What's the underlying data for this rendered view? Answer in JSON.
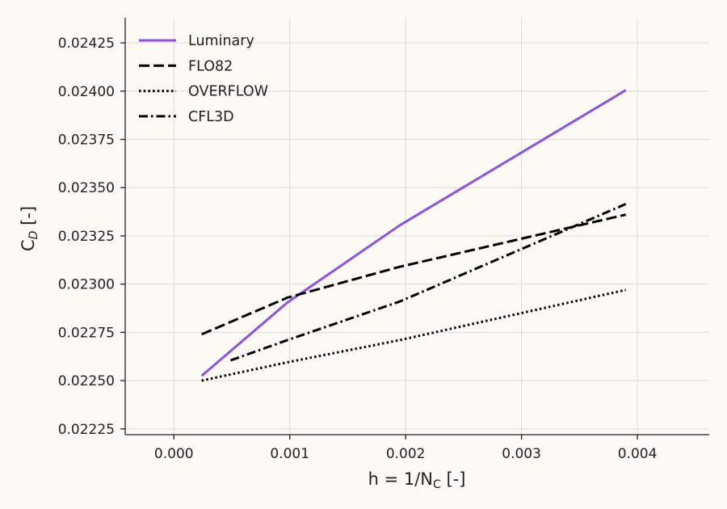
{
  "chart_data": {
    "type": "line",
    "xlabel": "h = 1/N",
    "xlabel_sub": "C",
    "xlabel_suffix": " [-]",
    "ylabel": "C",
    "ylabel_sub": "D",
    "ylabel_suffix": " [-]",
    "xlim": [
      -0.00042,
      0.00462
    ],
    "ylim": [
      0.02222,
      0.02438
    ],
    "x_ticks": [
      0.0,
      0.001,
      0.002,
      0.003,
      0.004
    ],
    "x_tick_labels": [
      "0.000",
      "0.001",
      "0.002",
      "0.003",
      "0.004"
    ],
    "y_ticks": [
      0.02225,
      0.0225,
      0.02275,
      0.023,
      0.02325,
      0.0235,
      0.02375,
      0.024,
      0.02425
    ],
    "y_tick_labels": [
      "0.02225",
      "0.02250",
      "0.02275",
      "0.02300",
      "0.02325",
      "0.02350",
      "0.02375",
      "0.02400",
      "0.02425"
    ],
    "grid": true,
    "legend_position": "top-left",
    "series": [
      {
        "name": "Luminary",
        "style": "solid",
        "color": "#8b50f0",
        "x": [
          0.00024,
          0.00098,
          0.00195,
          0.0039
        ],
        "y": [
          0.022525,
          0.022905,
          0.023305,
          0.024005
        ]
      },
      {
        "name": "FLO82",
        "style": "dashed",
        "color": "#000000",
        "x": [
          0.00024,
          0.00098,
          0.00195,
          0.0039
        ],
        "y": [
          0.02274,
          0.02293,
          0.02309,
          0.02336
        ]
      },
      {
        "name": "OVERFLOW",
        "style": "dotted",
        "color": "#000000",
        "x": [
          0.00024,
          0.00098,
          0.00195,
          0.0039
        ],
        "y": [
          0.0225,
          0.022595,
          0.02271,
          0.02297
        ]
      },
      {
        "name": "CFL3D",
        "style": "dashdot",
        "color": "#000000",
        "x": [
          0.00049,
          0.00098,
          0.00195,
          0.0039
        ],
        "y": [
          0.022605,
          0.02271,
          0.02291,
          0.023415
        ]
      }
    ]
  }
}
